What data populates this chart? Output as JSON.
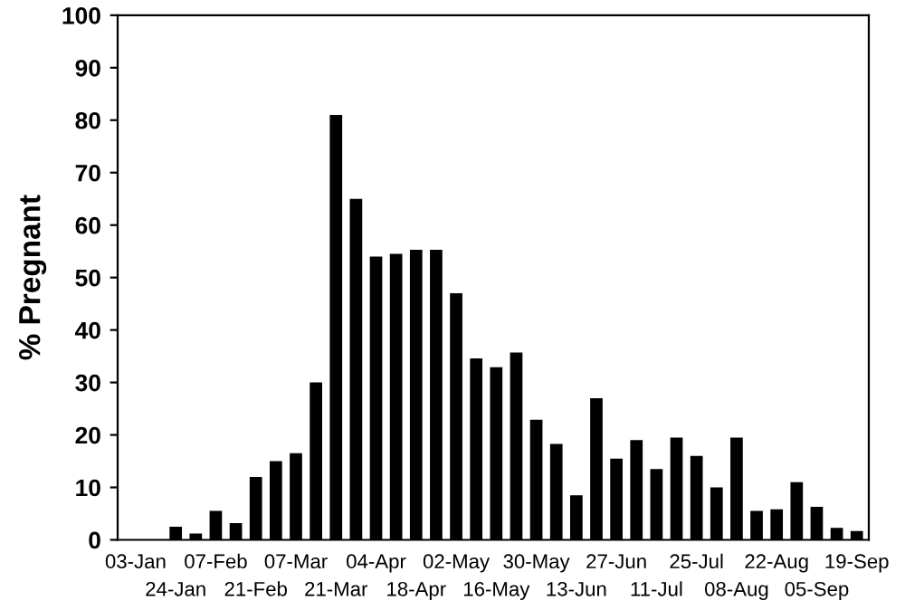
{
  "chart_data": {
    "type": "bar",
    "ylabel": "% Pregnant",
    "categories": [
      "03-Jan",
      null,
      "24-Jan",
      null,
      "07-Feb",
      null,
      "21-Feb",
      null,
      "07-Mar",
      null,
      "21-Mar",
      null,
      "04-Apr",
      null,
      "18-Apr",
      null,
      "02-May",
      null,
      "16-May",
      null,
      "30-May",
      null,
      "13-Jun",
      null,
      "27-Jun",
      null,
      "11-Jul",
      null,
      "25-Jul",
      null,
      "08-Aug",
      null,
      "22-Aug",
      null,
      "05-Sep",
      null,
      "19-Sep"
    ],
    "values": [
      0,
      0,
      2.5,
      1.2,
      5.5,
      3.2,
      12,
      15,
      16.5,
      30,
      81,
      65,
      54,
      54.5,
      55.3,
      55.3,
      47,
      34.6,
      32.9,
      35.7,
      22.9,
      18.3,
      8.5,
      27,
      15.5,
      19,
      13.5,
      19.5,
      16,
      10,
      19.5,
      5.5,
      5.8,
      11,
      6.3,
      2.3,
      1.7
    ],
    "color": "#000000",
    "ylim": [
      0,
      100
    ],
    "yticks": [
      0,
      10,
      20,
      30,
      40,
      50,
      60,
      70,
      80,
      90,
      100
    ],
    "grid": false
  }
}
